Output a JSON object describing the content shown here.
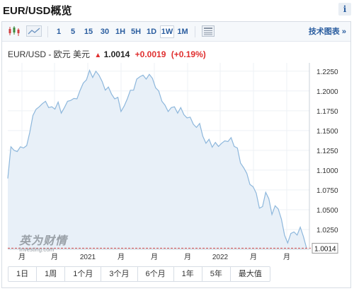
{
  "header": {
    "title": "EUR/USD概览",
    "info_label": "i"
  },
  "toolbar": {
    "chart_types": [
      "candlestick-icon",
      "area-chart-icon"
    ],
    "intervals": [
      "1",
      "5",
      "15",
      "30",
      "1H",
      "5H",
      "1D",
      "1W",
      "1M"
    ],
    "active_interval": "1W",
    "settings_icon": "calendar-grid-icon",
    "tech_chart_link": "技术图表 »"
  },
  "quote": {
    "symbol": "EUR/USD - 欧元 美元",
    "direction": "up",
    "price": "1.0014",
    "change": "+0.0019",
    "change_pct": "(+0.19%)",
    "up_color": "#e03030"
  },
  "watermark": {
    "cn": "英为财情",
    "en": "Investing.com"
  },
  "ranges": [
    "1日",
    "1周",
    "1个月",
    "3个月",
    "6个月",
    "1年",
    "5年",
    "最大值"
  ],
  "chart_data": {
    "type": "area",
    "y_ticks": [
      "1.2250",
      "1.2000",
      "1.1750",
      "1.1500",
      "1.1250",
      "1.1000",
      "1.0750",
      "1.0500",
      "1.0250"
    ],
    "ylim": [
      1.0,
      1.2355
    ],
    "x_labels": [
      "月",
      "月",
      "2021",
      "月",
      "月",
      "月",
      "2022",
      "月",
      "月"
    ],
    "current_value_label": "1.0014",
    "current_value": 1.0014,
    "line_color": "#8db7dc",
    "fill_color": "#e8f0f8",
    "series": [
      1.0895,
      1.1295,
      1.125,
      1.1235,
      1.1295,
      1.128,
      1.131,
      1.148,
      1.169,
      1.177,
      1.18,
      1.184,
      1.187,
      1.179,
      1.18,
      1.177,
      1.186,
      1.172,
      1.179,
      1.187,
      1.188,
      1.1905,
      1.19,
      1.201,
      1.21,
      1.214,
      1.226,
      1.217,
      1.225,
      1.22,
      1.212,
      1.201,
      1.205,
      1.196,
      1.19,
      1.192,
      1.174,
      1.181,
      1.19,
      1.201,
      1.201,
      1.215,
      1.218,
      1.22,
      1.215,
      1.221,
      1.216,
      1.204,
      1.2,
      1.187,
      1.182,
      1.174,
      1.179,
      1.18,
      1.172,
      1.179,
      1.17,
      1.166,
      1.167,
      1.158,
      1.154,
      1.159,
      1.143,
      1.134,
      1.139,
      1.129,
      1.135,
      1.13,
      1.134,
      1.137,
      1.136,
      1.141,
      1.13,
      1.128,
      1.109,
      1.103,
      1.096,
      1.082,
      1.079,
      1.071,
      1.052,
      1.054,
      1.072,
      1.064,
      1.044,
      1.055,
      1.051,
      1.038,
      1.018,
      1.008,
      1.02,
      1.022,
      1.018,
      1.028,
      1.016,
      1.0014
    ]
  }
}
